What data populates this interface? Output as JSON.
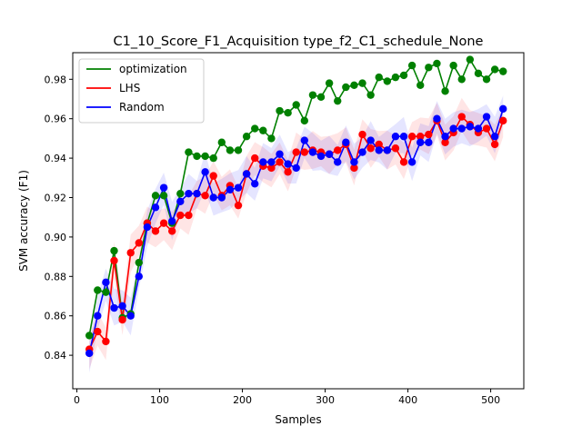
{
  "chart_data": {
    "type": "line",
    "title": "C1_10_Score_F1_Acquisition type_f2_C1_schedule_None",
    "xlabel": "Samples",
    "ylabel": "SVM accuracy (F1)",
    "xlim": [
      -5,
      540
    ],
    "ylim": [
      0.823,
      0.9935
    ],
    "xticks": [
      0,
      100,
      200,
      300,
      400,
      500
    ],
    "xtick_labels": [
      "0",
      "100",
      "200",
      "300",
      "400",
      "500"
    ],
    "yticks": [
      0.84,
      0.86,
      0.88,
      0.9,
      0.92,
      0.94,
      0.96,
      0.98
    ],
    "ytick_labels": [
      "0.84",
      "0.86",
      "0.88",
      "0.90",
      "0.92",
      "0.94",
      "0.96",
      "0.98"
    ],
    "grid": false,
    "legend_position": "top-left",
    "x": [
      15,
      25,
      35,
      45,
      55,
      65,
      75,
      85,
      95,
      105,
      115,
      125,
      135,
      145,
      155,
      165,
      175,
      185,
      195,
      205,
      215,
      225,
      235,
      245,
      255,
      265,
      275,
      285,
      295,
      305,
      315,
      325,
      335,
      345,
      355,
      365,
      375,
      385,
      395,
      405,
      415,
      425,
      435,
      445,
      455,
      465,
      475,
      485,
      495,
      505,
      515
    ],
    "series": [
      {
        "name": "optimization",
        "color": "#008000",
        "values": [
          0.85,
          0.873,
          0.872,
          0.893,
          0.859,
          0.861,
          0.887,
          0.907,
          0.921,
          0.921,
          0.907,
          0.922,
          0.943,
          0.941,
          0.941,
          0.94,
          0.948,
          0.944,
          0.944,
          0.951,
          0.955,
          0.954,
          0.95,
          0.964,
          0.963,
          0.967,
          0.959,
          0.972,
          0.971,
          0.978,
          0.969,
          0.976,
          0.977,
          0.978,
          0.972,
          0.981,
          0.979,
          0.981,
          0.982,
          0.987,
          0.977,
          0.986,
          0.988,
          0.974,
          0.987,
          0.98,
          0.99,
          0.983,
          0.98,
          0.985,
          0.984
        ]
      },
      {
        "name": "LHS",
        "color": "#ff0000",
        "values": [
          0.843,
          0.852,
          0.847,
          0.888,
          0.858,
          0.892,
          0.897,
          0.907,
          0.903,
          0.907,
          0.903,
          0.911,
          0.911,
          0.922,
          0.921,
          0.931,
          0.921,
          0.926,
          0.916,
          0.932,
          0.94,
          0.936,
          0.935,
          0.938,
          0.933,
          0.943,
          0.943,
          0.944,
          0.943,
          0.942,
          0.944,
          0.947,
          0.935,
          0.952,
          0.945,
          0.947,
          0.944,
          0.945,
          0.938,
          0.951,
          0.951,
          0.952,
          0.959,
          0.948,
          0.953,
          0.961,
          0.957,
          0.953,
          0.955,
          0.947,
          0.959
        ]
      },
      {
        "name": "Random",
        "color": "#0000ff",
        "values": [
          0.841,
          0.86,
          0.877,
          0.864,
          0.865,
          0.86,
          0.88,
          0.905,
          0.915,
          0.925,
          0.908,
          0.918,
          0.922,
          0.922,
          0.933,
          0.92,
          0.92,
          0.924,
          0.925,
          0.932,
          0.927,
          0.938,
          0.938,
          0.942,
          0.937,
          0.935,
          0.949,
          0.943,
          0.941,
          0.942,
          0.938,
          0.948,
          0.938,
          0.943,
          0.949,
          0.944,
          0.944,
          0.951,
          0.951,
          0.938,
          0.948,
          0.948,
          0.96,
          0.951,
          0.955,
          0.955,
          0.956,
          0.955,
          0.961,
          0.951,
          0.965
        ]
      }
    ]
  }
}
